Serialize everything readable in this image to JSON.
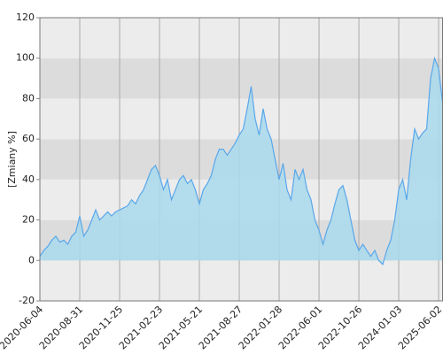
{
  "chart_data": {
    "type": "area",
    "y_label": "[Zmiany %]",
    "categories": [
      "2020-06-04",
      null,
      null,
      null,
      null,
      null,
      null,
      null,
      null,
      null,
      "2020-08-31",
      null,
      null,
      null,
      null,
      null,
      null,
      null,
      null,
      null,
      "2020-11-25",
      null,
      null,
      null,
      null,
      null,
      null,
      null,
      null,
      null,
      "2021-02-23",
      null,
      null,
      null,
      null,
      null,
      null,
      null,
      null,
      null,
      "2021-05-21",
      null,
      null,
      null,
      null,
      null,
      null,
      null,
      null,
      null,
      "2021-08-27",
      null,
      null,
      null,
      null,
      null,
      null,
      null,
      null,
      null,
      "2022-01-28",
      null,
      null,
      null,
      null,
      null,
      null,
      null,
      null,
      null,
      "2022-06-01",
      null,
      null,
      null,
      null,
      null,
      null,
      null,
      null,
      null,
      "2022-10-26",
      null,
      null,
      null,
      null,
      null,
      null,
      null,
      null,
      null,
      "2024-01-03",
      null,
      null,
      null,
      null,
      null,
      null,
      null,
      null,
      null,
      "2025-06-02",
      null
    ],
    "values": [
      2,
      5,
      7,
      10,
      12,
      9,
      10,
      8,
      12,
      14,
      22,
      12,
      15,
      20,
      25,
      20,
      22,
      24,
      22,
      24,
      25,
      26,
      27,
      30,
      28,
      32,
      35,
      40,
      45,
      47,
      42,
      35,
      40,
      30,
      35,
      40,
      42,
      38,
      40,
      35,
      28,
      35,
      38,
      42,
      50,
      55,
      55,
      52,
      55,
      58,
      62,
      65,
      75,
      86,
      70,
      62,
      75,
      65,
      60,
      50,
      40,
      48,
      35,
      30,
      45,
      40,
      45,
      35,
      30,
      20,
      15,
      8,
      15,
      20,
      28,
      35,
      37,
      30,
      20,
      10,
      5,
      8,
      5,
      2,
      5,
      0,
      -2,
      5,
      10,
      20,
      35,
      40,
      30,
      50,
      65,
      60,
      63,
      65,
      90,
      100,
      95,
      78
    ],
    "color": "#5aa7ea",
    "fill": "#a9d9ec",
    "ylim": [
      -20,
      120
    ],
    "yticks": [
      -20,
      0,
      20,
      40,
      60,
      80,
      100,
      120
    ],
    "grid": true
  }
}
